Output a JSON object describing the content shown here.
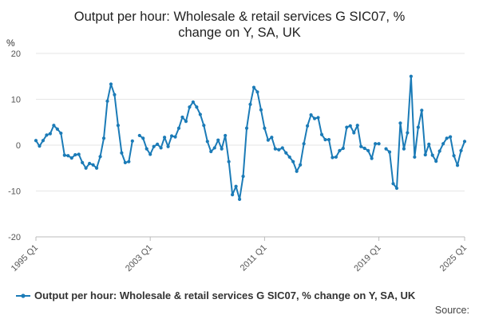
{
  "chart_data": {
    "type": "line",
    "title_lines": [
      "Output per hour: Wholesale & retail services G SIC07, %",
      "change on Y, SA, UK"
    ],
    "ylabel": "%",
    "ylim": [
      -20,
      20
    ],
    "yticks": [
      20,
      10,
      0,
      -10,
      -20
    ],
    "xticks": [
      {
        "label": "1995 Q1",
        "index": 0
      },
      {
        "label": "2003 Q1",
        "index": 32
      },
      {
        "label": "2011 Q1",
        "index": 64
      },
      {
        "label": "2019 Q1",
        "index": 96
      },
      {
        "label": "2025 Q1",
        "index": 120
      }
    ],
    "grid": true,
    "legend_position": "bottom",
    "color": "#1b7bb7",
    "series": [
      {
        "name": "Output per hour: Wholesale & retail services G SIC07, % change on Y, SA, UK",
        "values": [
          1,
          -0.2,
          1,
          2.2,
          2.5,
          4.3,
          3.5,
          2.6,
          -2.2,
          -2.3,
          -2.8,
          -2.1,
          -2,
          -3.8,
          -5,
          -4,
          -4.3,
          -5,
          -2.5,
          1.5,
          9.6,
          13.3,
          11,
          4.3,
          -1.7,
          -3.8,
          -3.6,
          0.9,
          null,
          2.1,
          1.5,
          -0.8,
          -2,
          -0.3,
          0.2,
          -0.6,
          1.7,
          -0.3,
          2,
          1.8,
          3.7,
          6.1,
          5.2,
          8.3,
          9.4,
          8.3,
          6.7,
          4.3,
          0.8,
          -1.4,
          -0.6,
          1.1,
          -0.8,
          2.1,
          -3.6,
          -10.8,
          -9,
          -11.8,
          -6.8,
          3.7,
          8.9,
          12.6,
          11.6,
          7.7,
          3.7,
          1.1,
          1.7,
          -0.8,
          -1,
          -0.6,
          -1.7,
          -2.6,
          -3.6,
          -5.7,
          -4.3,
          0.3,
          4.2,
          6.6,
          5.8,
          6,
          2.3,
          1.2,
          1.2,
          -2.7,
          -2.6,
          -1.2,
          -0.7,
          3.9,
          4.2,
          2.7,
          4.3,
          -0.3,
          -0.7,
          -1.2,
          -2.9,
          0.3,
          0.3,
          null,
          -0.8,
          -1.5,
          -8.4,
          -9.4,
          4.8,
          -0.8,
          2.7,
          15,
          -2.6,
          3.9,
          7.6,
          -2.1,
          0.2,
          -2.2,
          -3.5,
          -1.3,
          0.3,
          1.5,
          1.8,
          -2.3,
          -4.4,
          -1.2,
          0.8
        ]
      }
    ],
    "source_label": "Source:"
  }
}
